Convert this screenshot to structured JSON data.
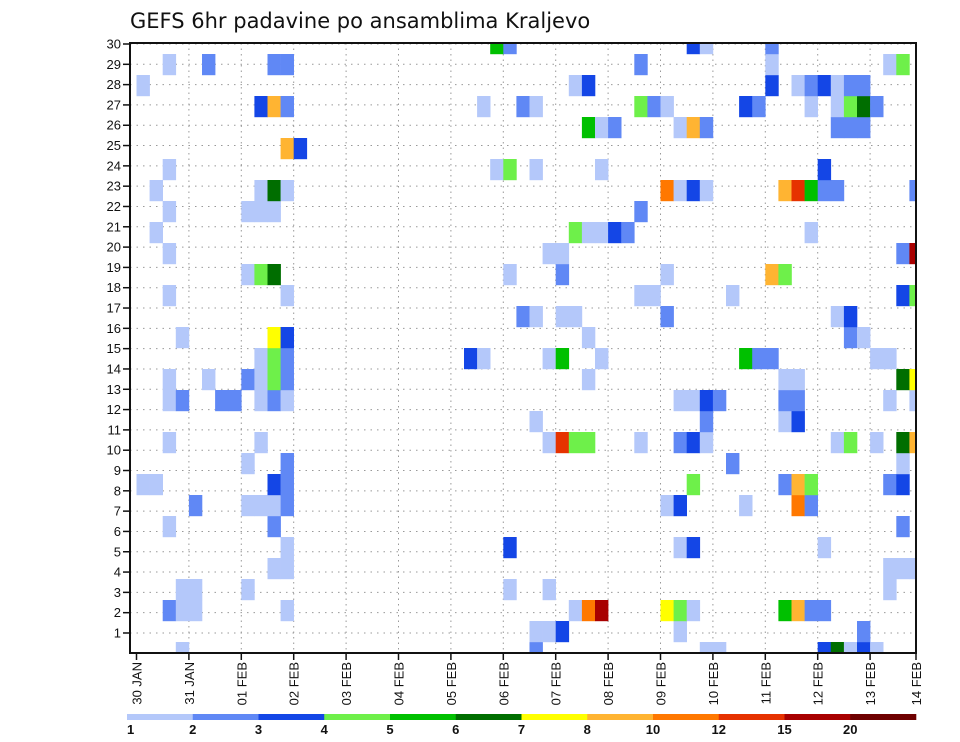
{
  "chart_data": {
    "type": "heatmap",
    "title": "GEFS 6hr padavine po ansamblima Kraljevo",
    "xlabel": "",
    "ylabel": "",
    "x_tick_labels": [
      "30 JAN",
      "31 JAN",
      "01 FEB",
      "02 FEB",
      "03 FEB",
      "04 FEB",
      "05 FEB",
      "06 FEB",
      "07 FEB",
      "08 FEB",
      "09 FEB",
      "10 FEB",
      "11 FEB",
      "12 FEB",
      "13 FEB",
      "14 FEB"
    ],
    "x_steps_per_day": 4,
    "x_columns": 60,
    "y_tick_labels": [
      "1",
      "2",
      "3",
      "4",
      "5",
      "6",
      "7",
      "8",
      "9",
      "10",
      "11",
      "12",
      "13",
      "14",
      "15",
      "16",
      "17",
      "18",
      "19",
      "20",
      "21",
      "22",
      "23",
      "24",
      "25",
      "26",
      "27",
      "28",
      "29",
      "30"
    ],
    "ylim": [
      1,
      30
    ],
    "grid": true,
    "legend": {
      "placement": "bottom",
      "labels": [
        "1",
        "2",
        "3",
        "4",
        "5",
        "6",
        "7",
        "8",
        "10",
        "12",
        "15",
        "20"
      ],
      "colors": [
        "#b4c8fa",
        "#6088f5",
        "#1446e6",
        "#6ef04a",
        "#00c000",
        "#006e00",
        "#ffff00",
        "#ffb432",
        "#ff7800",
        "#e63200",
        "#a80000",
        "#6e0000"
      ]
    },
    "cells_format": "member -> [[time_column_index, color_bin_index(1-12)], ...]",
    "cells": {
      "30": [
        [
          27,
          5
        ],
        [
          28,
          2
        ],
        [
          42,
          3
        ],
        [
          43,
          1
        ],
        [
          48,
          2
        ]
      ],
      "29": [
        [
          2,
          1
        ],
        [
          5,
          2
        ],
        [
          10,
          2
        ],
        [
          11,
          2
        ],
        [
          38,
          2
        ],
        [
          48,
          1
        ],
        [
          57,
          1
        ],
        [
          58,
          4
        ]
      ],
      "28": [
        [
          0,
          1
        ],
        [
          33,
          1
        ],
        [
          34,
          3
        ],
        [
          48,
          3
        ],
        [
          50,
          1
        ],
        [
          51,
          2
        ],
        [
          52,
          3
        ],
        [
          53,
          1
        ],
        [
          54,
          2
        ],
        [
          55,
          2
        ]
      ],
      "27": [
        [
          9,
          3
        ],
        [
          10,
          8
        ],
        [
          11,
          2
        ],
        [
          26,
          1
        ],
        [
          29,
          2
        ],
        [
          30,
          1
        ],
        [
          38,
          4
        ],
        [
          39,
          2
        ],
        [
          40,
          1
        ],
        [
          46,
          3
        ],
        [
          47,
          2
        ],
        [
          51,
          1
        ],
        [
          53,
          1
        ],
        [
          54,
          4
        ],
        [
          55,
          6
        ],
        [
          56,
          2
        ]
      ],
      "26": [
        [
          34,
          5
        ],
        [
          35,
          1
        ],
        [
          36,
          2
        ],
        [
          41,
          1
        ],
        [
          42,
          8
        ],
        [
          43,
          2
        ],
        [
          53,
          2
        ],
        [
          54,
          2
        ],
        [
          55,
          2
        ]
      ],
      "25": [
        [
          11,
          8
        ],
        [
          12,
          3
        ]
      ],
      "24": [
        [
          2,
          1
        ],
        [
          27,
          1
        ],
        [
          28,
          4
        ],
        [
          30,
          1
        ],
        [
          35,
          1
        ],
        [
          52,
          3
        ]
      ],
      "23": [
        [
          1,
          1
        ],
        [
          9,
          1
        ],
        [
          10,
          6
        ],
        [
          11,
          1
        ],
        [
          40,
          9
        ],
        [
          41,
          1
        ],
        [
          42,
          3
        ],
        [
          43,
          1
        ],
        [
          49,
          8
        ],
        [
          50,
          10
        ],
        [
          51,
          5
        ],
        [
          52,
          2
        ],
        [
          53,
          2
        ],
        [
          59,
          2
        ]
      ],
      "22": [
        [
          2,
          1
        ],
        [
          8,
          1
        ],
        [
          9,
          1
        ],
        [
          10,
          1
        ],
        [
          38,
          2
        ]
      ],
      "21": [
        [
          1,
          1
        ],
        [
          33,
          4
        ],
        [
          34,
          1
        ],
        [
          35,
          1
        ],
        [
          36,
          3
        ],
        [
          37,
          2
        ],
        [
          51,
          1
        ]
      ],
      "20": [
        [
          2,
          1
        ],
        [
          31,
          1
        ],
        [
          32,
          1
        ],
        [
          58,
          2
        ],
        [
          59,
          11
        ]
      ],
      "19": [
        [
          8,
          1
        ],
        [
          9,
          4
        ],
        [
          10,
          6
        ],
        [
          28,
          1
        ],
        [
          32,
          2
        ],
        [
          40,
          1
        ],
        [
          48,
          8
        ],
        [
          49,
          4
        ]
      ],
      "18": [
        [
          2,
          1
        ],
        [
          11,
          1
        ],
        [
          38,
          1
        ],
        [
          39,
          1
        ],
        [
          45,
          1
        ],
        [
          58,
          3
        ],
        [
          59,
          4
        ]
      ],
      "17": [
        [
          29,
          2
        ],
        [
          30,
          1
        ],
        [
          32,
          1
        ],
        [
          33,
          1
        ],
        [
          40,
          2
        ],
        [
          53,
          1
        ],
        [
          54,
          3
        ]
      ],
      "16": [
        [
          3,
          1
        ],
        [
          10,
          7
        ],
        [
          11,
          3
        ],
        [
          34,
          1
        ],
        [
          54,
          2
        ],
        [
          55,
          1
        ]
      ],
      "15": [
        [
          9,
          1
        ],
        [
          10,
          4
        ],
        [
          11,
          2
        ],
        [
          25,
          3
        ],
        [
          26,
          1
        ],
        [
          31,
          1
        ],
        [
          32,
          5
        ],
        [
          35,
          1
        ],
        [
          46,
          5
        ],
        [
          47,
          2
        ],
        [
          48,
          2
        ],
        [
          56,
          1
        ],
        [
          57,
          1
        ]
      ],
      "14": [
        [
          2,
          1
        ],
        [
          5,
          1
        ],
        [
          8,
          2
        ],
        [
          9,
          1
        ],
        [
          10,
          4
        ],
        [
          11,
          2
        ],
        [
          34,
          1
        ],
        [
          49,
          1
        ],
        [
          50,
          1
        ],
        [
          58,
          6
        ],
        [
          59,
          7
        ]
      ],
      "13": [
        [
          2,
          1
        ],
        [
          3,
          2
        ],
        [
          6,
          2
        ],
        [
          7,
          2
        ],
        [
          9,
          1
        ],
        [
          10,
          2
        ],
        [
          11,
          1
        ],
        [
          41,
          1
        ],
        [
          42,
          1
        ],
        [
          43,
          3
        ],
        [
          44,
          2
        ],
        [
          49,
          2
        ],
        [
          50,
          2
        ],
        [
          57,
          1
        ],
        [
          59,
          1
        ]
      ],
      "12": [
        [
          30,
          1
        ],
        [
          43,
          2
        ],
        [
          49,
          1
        ],
        [
          50,
          3
        ]
      ],
      "11": [
        [
          2,
          1
        ],
        [
          9,
          1
        ],
        [
          31,
          1
        ],
        [
          32,
          10
        ],
        [
          33,
          4
        ],
        [
          34,
          4
        ],
        [
          38,
          1
        ],
        [
          41,
          2
        ],
        [
          42,
          3
        ],
        [
          43,
          1
        ],
        [
          53,
          1
        ],
        [
          54,
          4
        ],
        [
          56,
          1
        ],
        [
          58,
          6
        ],
        [
          59,
          8
        ]
      ],
      "10": [
        [
          8,
          1
        ],
        [
          11,
          2
        ],
        [
          45,
          2
        ],
        [
          58,
          1
        ]
      ],
      "9": [
        [
          0,
          1
        ],
        [
          1,
          1
        ],
        [
          10,
          3
        ],
        [
          11,
          2
        ],
        [
          42,
          4
        ],
        [
          49,
          2
        ],
        [
          50,
          8
        ],
        [
          51,
          4
        ],
        [
          57,
          2
        ],
        [
          58,
          3
        ]
      ],
      "8": [
        [
          4,
          2
        ],
        [
          8,
          1
        ],
        [
          9,
          1
        ],
        [
          10,
          1
        ],
        [
          11,
          2
        ],
        [
          40,
          1
        ],
        [
          41,
          3
        ],
        [
          46,
          1
        ],
        [
          50,
          9
        ],
        [
          51,
          2
        ]
      ],
      "7": [
        [
          2,
          1
        ],
        [
          10,
          2
        ],
        [
          58,
          2
        ]
      ],
      "6": [
        [
          11,
          1
        ],
        [
          28,
          3
        ],
        [
          41,
          1
        ],
        [
          42,
          3
        ],
        [
          52,
          1
        ]
      ],
      "5": [
        [
          10,
          1
        ],
        [
          11,
          1
        ],
        [
          57,
          1
        ],
        [
          58,
          1
        ],
        [
          59,
          1
        ]
      ],
      "4": [
        [
          3,
          1
        ],
        [
          4,
          1
        ],
        [
          8,
          1
        ],
        [
          28,
          1
        ],
        [
          31,
          1
        ],
        [
          57,
          1
        ]
      ],
      "3": [
        [
          2,
          2
        ],
        [
          3,
          1
        ],
        [
          4,
          1
        ],
        [
          11,
          1
        ],
        [
          33,
          1
        ],
        [
          34,
          9
        ],
        [
          35,
          11
        ],
        [
          40,
          7
        ],
        [
          41,
          4
        ],
        [
          42,
          1
        ],
        [
          49,
          5
        ],
        [
          50,
          8
        ],
        [
          51,
          2
        ],
        [
          52,
          2
        ]
      ],
      "2": [
        [
          30,
          1
        ],
        [
          31,
          1
        ],
        [
          32,
          3
        ],
        [
          41,
          1
        ],
        [
          55,
          2
        ]
      ],
      "1": [
        [
          3,
          1
        ],
        [
          30,
          2
        ],
        [
          43,
          1
        ],
        [
          44,
          1
        ],
        [
          52,
          3
        ],
        [
          53,
          6
        ],
        [
          54,
          1
        ],
        [
          55,
          3
        ],
        [
          56,
          1
        ]
      ]
    }
  }
}
